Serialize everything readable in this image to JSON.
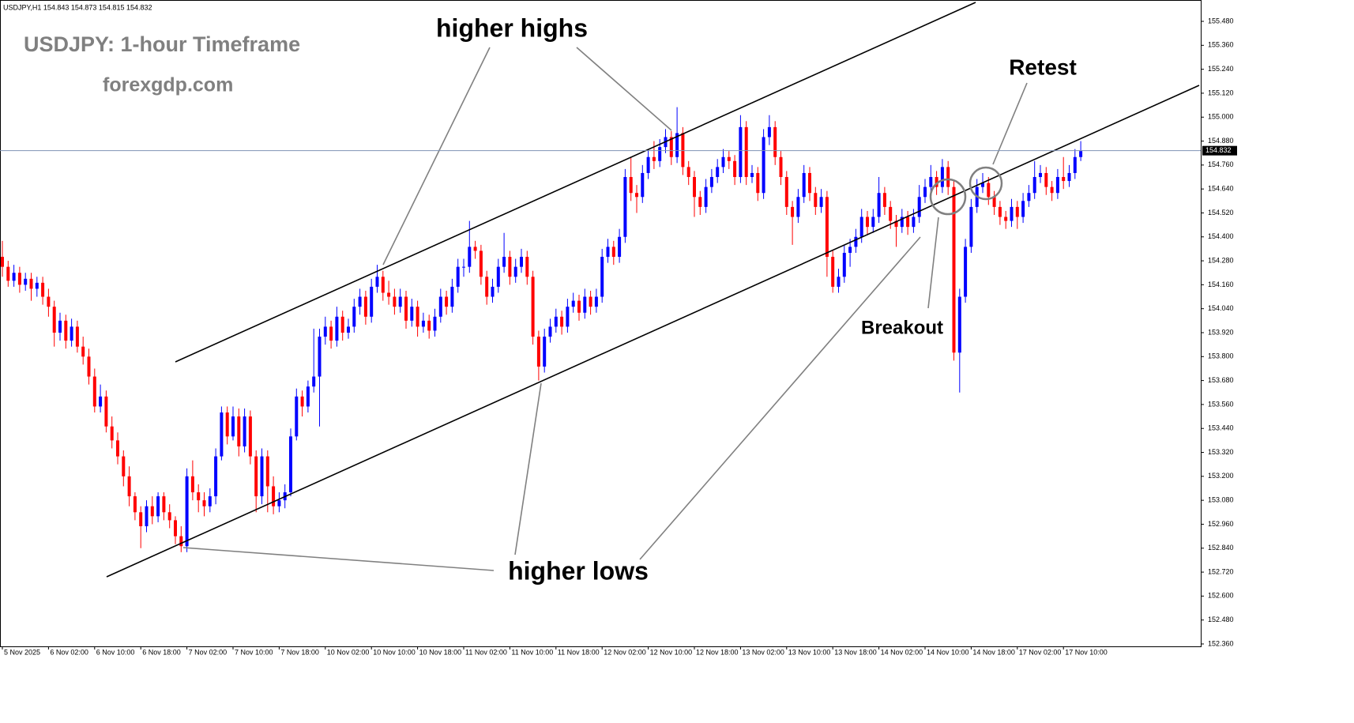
{
  "chart_data": {
    "type": "candlestick",
    "symbol_info": "USDJPY,H1  154.843 154.873 154.815 154.832",
    "title": "USDJPY: 1-hour Timeframe",
    "subtitle": "forexgdp.com",
    "annotations": {
      "higher_highs": "higher highs",
      "higher_lows": "higher lows",
      "retest": "Retest",
      "breakout": "Breakout"
    },
    "up_color": "#0000ff",
    "down_color": "#ff0000",
    "current_price": 154.832,
    "ylim": [
      152.348,
      155.587
    ],
    "yticks": [
      {
        "value": 152.36,
        "label": "152.360"
      },
      {
        "value": 152.48,
        "label": "152.480"
      },
      {
        "value": 152.6,
        "label": "152.600"
      },
      {
        "value": 152.72,
        "label": "152.720"
      },
      {
        "value": 152.84,
        "label": "152.840"
      },
      {
        "value": 152.96,
        "label": "152.960"
      },
      {
        "value": 153.08,
        "label": "153.080"
      },
      {
        "value": 153.2,
        "label": "153.200"
      },
      {
        "value": 153.32,
        "label": "153.320"
      },
      {
        "value": 153.44,
        "label": "153.440"
      },
      {
        "value": 153.56,
        "label": "153.560"
      },
      {
        "value": 153.68,
        "label": "153.680"
      },
      {
        "value": 153.8,
        "label": "153.800"
      },
      {
        "value": 153.92,
        "label": "153.920"
      },
      {
        "value": 154.04,
        "label": "154.040"
      },
      {
        "value": 154.16,
        "label": "154.160"
      },
      {
        "value": 154.28,
        "label": "154.280"
      },
      {
        "value": 154.4,
        "label": "154.400"
      },
      {
        "value": 154.52,
        "label": "154.520"
      },
      {
        "value": 154.64,
        "label": "154.640"
      },
      {
        "value": 154.76,
        "label": "154.760"
      },
      {
        "value": 154.88,
        "label": "154.880"
      },
      {
        "value": 155.0,
        "label": "155.000"
      },
      {
        "value": 155.12,
        "label": "155.120"
      },
      {
        "value": 155.24,
        "label": "155.240"
      },
      {
        "value": 155.36,
        "label": "155.360"
      },
      {
        "value": 155.48,
        "label": "155.480"
      }
    ],
    "grid": false,
    "categories": [
      "5 Nov 2025",
      null,
      null,
      null,
      null,
      null,
      null,
      null,
      "6 Nov 02:00",
      null,
      null,
      null,
      null,
      null,
      null,
      null,
      "6 Nov 10:00",
      null,
      null,
      null,
      null,
      null,
      null,
      null,
      "6 Nov 18:00",
      null,
      null,
      null,
      null,
      null,
      null,
      null,
      "7 Nov 02:00",
      null,
      null,
      null,
      null,
      null,
      null,
      null,
      "7 Nov 10:00",
      null,
      null,
      null,
      null,
      null,
      null,
      null,
      "7 Nov 18:00",
      null,
      null,
      null,
      null,
      null,
      null,
      null,
      "10 Nov 02:00",
      null,
      null,
      null,
      null,
      null,
      null,
      null,
      "10 Nov 10:00",
      null,
      null,
      null,
      null,
      null,
      null,
      null,
      "10 Nov 18:00",
      null,
      null,
      null,
      null,
      null,
      null,
      null,
      "11 Nov 02:00",
      null,
      null,
      null,
      null,
      null,
      null,
      null,
      "11 Nov 10:00",
      null,
      null,
      null,
      null,
      null,
      null,
      null,
      "11 Nov 18:00",
      null,
      null,
      null,
      null,
      null,
      null,
      null,
      "12 Nov 02:00",
      null,
      null,
      null,
      null,
      null,
      null,
      null,
      "12 Nov 10:00",
      null,
      null,
      null,
      null,
      null,
      null,
      null,
      "12 Nov 18:00",
      null,
      null,
      null,
      null,
      null,
      null,
      null,
      "13 Nov 02:00",
      null,
      null,
      null,
      null,
      null,
      null,
      null,
      "13 Nov 10:00",
      null,
      null,
      null,
      null,
      null,
      null,
      null,
      "13 Nov 18:00",
      null,
      null,
      null,
      null,
      null,
      null,
      null,
      "14 Nov 02:00",
      null,
      null,
      null,
      null,
      null,
      null,
      null,
      "14 Nov 10:00",
      null,
      null,
      null,
      null,
      null,
      null,
      null,
      "14 Nov 18:00",
      null,
      null,
      null,
      null,
      null,
      null,
      null,
      "17 Nov 02:00",
      null,
      null,
      null,
      null,
      null,
      null,
      null,
      "17 Nov 10:00",
      null,
      null,
      null
    ],
    "candles": [
      [
        154.3,
        154.38,
        154.2,
        154.25
      ],
      [
        154.25,
        154.28,
        154.15,
        154.18
      ],
      [
        154.18,
        154.26,
        154.15,
        154.22
      ],
      [
        154.22,
        154.25,
        154.12,
        154.16
      ],
      [
        154.16,
        154.22,
        154.13,
        154.19
      ],
      [
        154.19,
        154.22,
        154.08,
        154.14
      ],
      [
        154.14,
        154.2,
        154.1,
        154.17
      ],
      [
        154.17,
        154.2,
        154.06,
        154.1
      ],
      [
        154.1,
        154.14,
        154.0,
        154.05
      ],
      [
        154.05,
        154.08,
        153.85,
        153.92
      ],
      [
        153.92,
        154.02,
        153.88,
        153.98
      ],
      [
        153.98,
        154.01,
        153.84,
        153.88
      ],
      [
        153.88,
        153.99,
        153.85,
        153.95
      ],
      [
        153.95,
        153.98,
        153.82,
        153.85
      ],
      [
        153.85,
        153.9,
        153.76,
        153.8
      ],
      [
        153.8,
        153.84,
        153.66,
        153.7
      ],
      [
        153.7,
        153.74,
        153.52,
        153.55
      ],
      [
        153.55,
        153.66,
        153.52,
        153.6
      ],
      [
        153.6,
        153.63,
        153.42,
        153.45
      ],
      [
        153.45,
        153.5,
        153.34,
        153.38
      ],
      [
        153.38,
        153.42,
        153.26,
        153.3
      ],
      [
        153.3,
        153.33,
        153.15,
        153.2
      ],
      [
        153.2,
        153.25,
        153.05,
        153.1
      ],
      [
        153.1,
        153.12,
        152.98,
        153.02
      ],
      [
        153.02,
        153.05,
        152.84,
        152.95
      ],
      [
        152.95,
        153.08,
        152.92,
        153.05
      ],
      [
        153.05,
        153.1,
        152.96,
        153.0
      ],
      [
        153.0,
        153.12,
        152.97,
        153.1
      ],
      [
        153.1,
        153.12,
        152.98,
        153.02
      ],
      [
        153.02,
        153.06,
        152.94,
        152.98
      ],
      [
        152.98,
        153.0,
        152.86,
        152.9
      ],
      [
        152.9,
        152.95,
        152.82,
        152.85
      ],
      [
        152.85,
        153.24,
        152.82,
        153.2
      ],
      [
        153.2,
        153.28,
        153.08,
        153.12
      ],
      [
        153.12,
        153.16,
        153.02,
        153.08
      ],
      [
        153.08,
        153.12,
        153.0,
        153.05
      ],
      [
        153.05,
        153.14,
        153.02,
        153.1
      ],
      [
        153.1,
        153.34,
        153.06,
        153.3
      ],
      [
        153.3,
        153.55,
        153.28,
        153.52
      ],
      [
        153.52,
        153.55,
        153.36,
        153.4
      ],
      [
        153.4,
        153.55,
        153.38,
        153.5
      ],
      [
        153.5,
        153.54,
        153.3,
        153.35
      ],
      [
        153.35,
        153.54,
        153.32,
        153.5
      ],
      [
        153.5,
        153.53,
        153.26,
        153.3
      ],
      [
        153.3,
        153.33,
        153.02,
        153.1
      ],
      [
        153.1,
        153.34,
        153.06,
        153.3
      ],
      [
        153.3,
        153.33,
        153.02,
        153.15
      ],
      [
        153.15,
        153.2,
        153.01,
        153.05
      ],
      [
        153.05,
        153.12,
        153.02,
        153.08
      ],
      [
        153.08,
        153.16,
        153.04,
        153.12
      ],
      [
        153.12,
        153.44,
        153.1,
        153.4
      ],
      [
        153.4,
        153.64,
        153.38,
        153.6
      ],
      [
        153.6,
        153.63,
        153.5,
        153.55
      ],
      [
        153.55,
        153.68,
        153.52,
        153.65
      ],
      [
        153.65,
        153.94,
        153.62,
        153.7
      ],
      [
        153.7,
        153.94,
        153.45,
        153.9
      ],
      [
        153.9,
        154.0,
        153.86,
        153.95
      ],
      [
        153.95,
        153.98,
        153.84,
        153.88
      ],
      [
        153.88,
        154.05,
        153.85,
        154.0
      ],
      [
        154.0,
        154.03,
        153.88,
        153.92
      ],
      [
        153.92,
        153.99,
        153.89,
        153.95
      ],
      [
        153.95,
        154.09,
        153.92,
        154.05
      ],
      [
        154.05,
        154.14,
        154.01,
        154.1
      ],
      [
        154.1,
        154.13,
        153.96,
        154.0
      ],
      [
        154.0,
        154.19,
        153.97,
        154.15
      ],
      [
        154.15,
        154.26,
        154.12,
        154.2
      ],
      [
        154.2,
        154.23,
        154.08,
        154.12
      ],
      [
        154.12,
        154.18,
        154.06,
        154.1
      ],
      [
        154.1,
        154.14,
        154.01,
        154.05
      ],
      [
        154.05,
        154.14,
        154.02,
        154.1
      ],
      [
        154.1,
        154.13,
        153.94,
        153.98
      ],
      [
        153.98,
        154.09,
        153.95,
        154.05
      ],
      [
        154.05,
        154.08,
        153.9,
        153.95
      ],
      [
        153.95,
        154.02,
        153.92,
        153.98
      ],
      [
        153.98,
        154.01,
        153.89,
        153.93
      ],
      [
        153.93,
        154.04,
        153.9,
        154.0
      ],
      [
        154.0,
        154.14,
        153.97,
        154.1
      ],
      [
        154.1,
        154.13,
        154.01,
        154.05
      ],
      [
        154.05,
        154.19,
        154.02,
        154.15
      ],
      [
        154.15,
        154.29,
        154.12,
        154.25
      ],
      [
        154.25,
        154.29,
        154.2,
        154.25
      ],
      [
        154.25,
        154.48,
        154.22,
        154.35
      ],
      [
        154.35,
        154.38,
        154.29,
        154.33
      ],
      [
        154.33,
        154.36,
        154.16,
        154.2
      ],
      [
        154.2,
        154.23,
        154.06,
        154.1
      ],
      [
        154.1,
        154.19,
        154.07,
        154.15
      ],
      [
        154.15,
        154.29,
        154.12,
        154.25
      ],
      [
        154.25,
        154.42,
        154.22,
        154.3
      ],
      [
        154.3,
        154.33,
        154.16,
        154.2
      ],
      [
        154.2,
        154.29,
        154.17,
        154.25
      ],
      [
        154.25,
        154.34,
        154.22,
        154.3
      ],
      [
        154.3,
        154.33,
        154.16,
        154.2
      ],
      [
        154.2,
        154.23,
        153.86,
        153.9
      ],
      [
        153.9,
        153.93,
        153.68,
        153.75
      ],
      [
        153.75,
        153.94,
        153.72,
        153.9
      ],
      [
        153.9,
        153.99,
        153.87,
        153.95
      ],
      [
        153.95,
        154.04,
        153.92,
        154.0
      ],
      [
        154.0,
        154.03,
        153.91,
        153.95
      ],
      [
        153.95,
        154.09,
        153.92,
        154.05
      ],
      [
        154.05,
        154.12,
        154.02,
        154.08
      ],
      [
        154.08,
        154.11,
        153.98,
        154.02
      ],
      [
        154.02,
        154.14,
        153.99,
        154.1
      ],
      [
        154.1,
        154.13,
        154.01,
        154.05
      ],
      [
        154.05,
        154.14,
        154.02,
        154.1
      ],
      [
        154.1,
        154.34,
        154.07,
        154.3
      ],
      [
        154.3,
        154.39,
        154.27,
        154.35
      ],
      [
        154.35,
        154.38,
        154.26,
        154.3
      ],
      [
        154.3,
        154.44,
        154.27,
        154.4
      ],
      [
        154.4,
        154.74,
        154.37,
        154.7
      ],
      [
        154.7,
        154.8,
        154.58,
        154.62
      ],
      [
        154.62,
        154.66,
        154.52,
        154.6
      ],
      [
        154.6,
        154.76,
        154.57,
        154.72
      ],
      [
        154.72,
        154.84,
        154.69,
        154.8
      ],
      [
        154.8,
        154.88,
        154.74,
        154.78
      ],
      [
        154.78,
        154.89,
        154.75,
        154.85
      ],
      [
        154.85,
        154.94,
        154.82,
        154.9
      ],
      [
        154.9,
        154.93,
        154.76,
        154.8
      ],
      [
        154.8,
        155.05,
        154.77,
        154.92
      ],
      [
        154.92,
        154.95,
        154.71,
        154.75
      ],
      [
        154.75,
        154.78,
        154.66,
        154.7
      ],
      [
        154.7,
        154.73,
        154.5,
        154.6
      ],
      [
        154.6,
        154.63,
        154.51,
        154.55
      ],
      [
        154.55,
        154.69,
        154.52,
        154.65
      ],
      [
        154.65,
        154.74,
        154.62,
        154.7
      ],
      [
        154.7,
        154.79,
        154.67,
        154.75
      ],
      [
        154.75,
        154.84,
        154.72,
        154.8
      ],
      [
        154.8,
        154.83,
        154.74,
        154.78
      ],
      [
        154.78,
        154.81,
        154.66,
        154.7
      ],
      [
        154.7,
        155.01,
        154.67,
        154.95
      ],
      [
        154.95,
        154.98,
        154.66,
        154.7
      ],
      [
        154.7,
        154.76,
        154.67,
        154.72
      ],
      [
        154.72,
        154.75,
        154.58,
        154.62
      ],
      [
        154.62,
        154.94,
        154.59,
        154.9
      ],
      [
        154.9,
        155.01,
        154.86,
        154.95
      ],
      [
        154.95,
        154.98,
        154.76,
        154.8
      ],
      [
        154.8,
        154.83,
        154.66,
        154.7
      ],
      [
        154.7,
        154.73,
        154.51,
        154.55
      ],
      [
        154.55,
        154.58,
        154.36,
        154.5
      ],
      [
        154.5,
        154.64,
        154.47,
        154.6
      ],
      [
        154.6,
        154.76,
        154.57,
        154.72
      ],
      [
        154.72,
        154.75,
        154.58,
        154.62
      ],
      [
        154.62,
        154.65,
        154.51,
        154.55
      ],
      [
        154.55,
        154.64,
        154.52,
        154.6
      ],
      [
        154.6,
        154.63,
        154.2,
        154.3
      ],
      [
        154.3,
        154.33,
        154.12,
        154.15
      ],
      [
        154.15,
        154.24,
        154.12,
        154.2
      ],
      [
        154.2,
        154.36,
        154.17,
        154.32
      ],
      [
        154.32,
        154.39,
        154.25,
        154.35
      ],
      [
        154.35,
        154.44,
        154.32,
        154.4
      ],
      [
        154.4,
        154.54,
        154.37,
        154.5
      ],
      [
        154.5,
        154.53,
        154.41,
        154.45
      ],
      [
        154.45,
        154.54,
        154.42,
        154.5
      ],
      [
        154.5,
        154.7,
        154.47,
        154.62
      ],
      [
        154.62,
        154.65,
        154.51,
        154.55
      ],
      [
        154.55,
        154.58,
        154.44,
        154.48
      ],
      [
        154.48,
        154.51,
        154.35,
        154.45
      ],
      [
        154.45,
        154.54,
        154.42,
        154.5
      ],
      [
        154.5,
        154.53,
        154.41,
        154.45
      ],
      [
        154.45,
        154.54,
        154.42,
        154.5
      ],
      [
        154.5,
        154.66,
        154.47,
        154.6
      ],
      [
        154.6,
        154.69,
        154.57,
        154.65
      ],
      [
        154.65,
        154.76,
        154.62,
        154.7
      ],
      [
        154.7,
        154.73,
        154.61,
        154.65
      ],
      [
        154.65,
        154.79,
        154.62,
        154.75
      ],
      [
        154.75,
        154.78,
        154.61,
        154.65
      ],
      [
        154.65,
        154.68,
        153.78,
        153.82
      ],
      [
        153.82,
        154.14,
        153.62,
        154.1
      ],
      [
        154.1,
        154.39,
        154.07,
        154.35
      ],
      [
        154.35,
        154.59,
        154.32,
        154.55
      ],
      [
        154.55,
        154.69,
        154.52,
        154.65
      ],
      [
        154.65,
        154.72,
        154.62,
        154.67
      ],
      [
        154.67,
        154.7,
        154.56,
        154.6
      ],
      [
        154.6,
        154.63,
        154.51,
        154.55
      ],
      [
        154.55,
        154.58,
        154.46,
        154.5
      ],
      [
        154.5,
        154.53,
        154.44,
        154.48
      ],
      [
        154.48,
        154.59,
        154.45,
        154.55
      ],
      [
        154.55,
        154.58,
        154.44,
        154.5
      ],
      [
        154.5,
        154.62,
        154.47,
        154.58
      ],
      [
        154.58,
        154.66,
        154.55,
        154.62
      ],
      [
        154.62,
        154.78,
        154.59,
        154.7
      ],
      [
        154.7,
        154.76,
        154.67,
        154.72
      ],
      [
        154.72,
        154.75,
        154.61,
        154.65
      ],
      [
        154.65,
        154.68,
        154.58,
        154.62
      ],
      [
        154.62,
        154.74,
        154.59,
        154.7
      ],
      [
        154.7,
        154.8,
        154.64,
        154.68
      ],
      [
        154.68,
        154.76,
        154.65,
        154.72
      ],
      [
        154.72,
        154.84,
        154.69,
        154.8
      ],
      [
        154.8,
        154.88,
        154.78,
        154.83
      ]
    ]
  }
}
